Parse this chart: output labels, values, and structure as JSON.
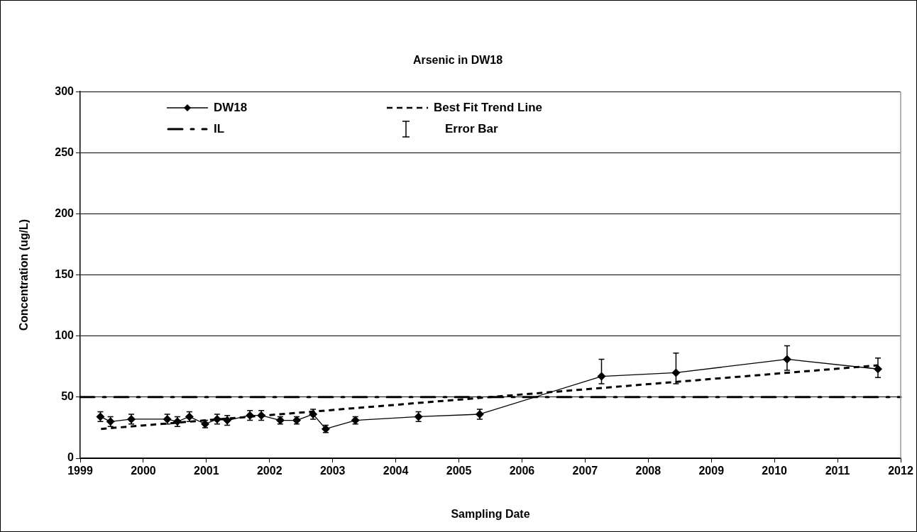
{
  "chart_data": {
    "type": "line",
    "title": "Arsenic in DW18",
    "xlabel": "Sampling Date",
    "ylabel": "Concentration (ug/L)",
    "xlim": [
      1999,
      2012
    ],
    "xticks": [
      1999,
      2000,
      2001,
      2002,
      2003,
      2004,
      2005,
      2006,
      2007,
      2008,
      2009,
      2010,
      2011,
      2012
    ],
    "ylim": [
      0,
      300
    ],
    "yticks": [
      0,
      50,
      100,
      150,
      200,
      250,
      300
    ],
    "grid": "y",
    "legend": "top left",
    "series": [
      {
        "name": "DW18",
        "color": "#000000",
        "marker": "diamond",
        "line_style": "solid",
        "x": [
          1999.32,
          1999.48,
          1999.81,
          2000.38,
          2000.54,
          2000.73,
          2000.98,
          2001.17,
          2001.33,
          2001.69,
          2001.87,
          2002.17,
          2002.43,
          2002.69,
          2002.89,
          2003.36,
          2004.36,
          2005.33,
          2007.26,
          2008.44,
          2010.2,
          2011.64
        ],
        "values": [
          34,
          30,
          32,
          32,
          30,
          34,
          28,
          32,
          31,
          35,
          35,
          31,
          31,
          36,
          24,
          31,
          34,
          36,
          67,
          70,
          81,
          73
        ],
        "errors": [
          4,
          4,
          4,
          4,
          4,
          4,
          3,
          4,
          4,
          4,
          4,
          3,
          3,
          4,
          3,
          3,
          4,
          4,
          [
            61,
            81
          ],
          [
            61,
            86
          ],
          [
            72,
            92
          ],
          [
            66,
            82
          ]
        ]
      },
      {
        "name": "Best Fit Trend Line",
        "color": "#000000",
        "marker": "none",
        "line_style": "dashed",
        "x": [
          1999.33,
          2011.64
        ],
        "values": [
          24,
          76
        ]
      }
    ],
    "ref_lines": [
      {
        "axis": "y",
        "value": 50,
        "label": "IL",
        "color": "#000000",
        "line_style": "dashed"
      }
    ],
    "annotations": [
      "Error Bar"
    ]
  }
}
